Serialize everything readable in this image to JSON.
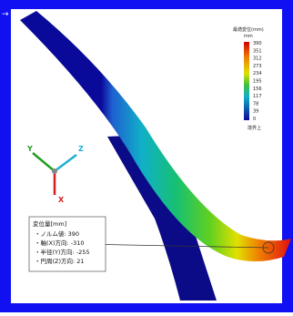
{
  "legend": {
    "title": "最適変位(mm)",
    "unit": "mm",
    "labels": [
      "390",
      "351",
      "312",
      "273",
      "234",
      "195",
      "156",
      "117",
      "78",
      "39",
      "0"
    ],
    "footer": "境界上"
  },
  "axes": {
    "y": "Y",
    "z": "Z",
    "x": "X"
  },
  "callout": {
    "title": "変位量[mm]",
    "lines": [
      "・ノルム値: 390",
      "・軸(X)方向: -310",
      "・半径(Y)方向: -255",
      "・円周(Z)方向: 21"
    ]
  }
}
